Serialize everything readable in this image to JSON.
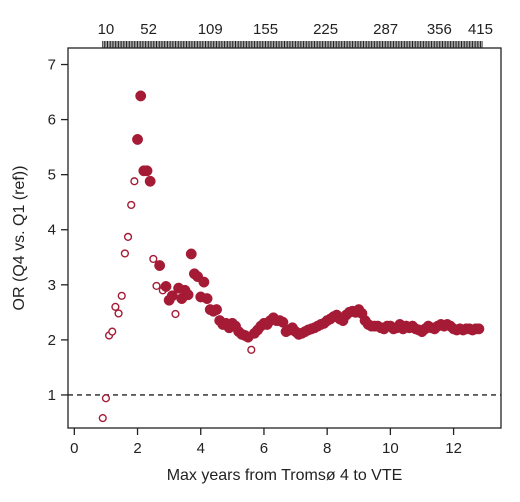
{
  "chart_data": {
    "type": "scatter",
    "title": "",
    "xlabel": "Max years from Tromsø 4 to VTE",
    "ylabel": "OR (Q4 vs. Q1 (ref))",
    "xlim": [
      -0.2,
      13.5
    ],
    "ylim": [
      0.4,
      7.3
    ],
    "x_ticks": [
      0,
      2,
      4,
      6,
      8,
      10,
      12
    ],
    "y_ticks": [
      1,
      2,
      3,
      4,
      5,
      6,
      7
    ],
    "reference_line": {
      "y": 1,
      "style": "dashed"
    },
    "top_axis": {
      "tick_labels": [
        {
          "x": 1.0,
          "label": "10"
        },
        {
          "x": 2.35,
          "label": "52"
        },
        {
          "x": 4.3,
          "label": "109"
        },
        {
          "x": 6.05,
          "label": "155"
        },
        {
          "x": 7.95,
          "label": "225"
        },
        {
          "x": 9.85,
          "label": "287"
        },
        {
          "x": 11.55,
          "label": "356"
        },
        {
          "x": 12.85,
          "label": "415"
        }
      ],
      "minor_tick_range": [
        0.9,
        12.9
      ],
      "minor_tick_step": 0.05
    },
    "marker_color": "#a51b35",
    "grid": false,
    "series": [
      {
        "name": "",
        "fill": "open",
        "points": [
          [
            0.9,
            0.58
          ],
          [
            1.0,
            0.94
          ],
          [
            1.1,
            2.08
          ],
          [
            1.2,
            2.15
          ],
          [
            1.3,
            2.6
          ],
          [
            1.4,
            2.48
          ],
          [
            1.5,
            2.8
          ],
          [
            1.6,
            3.57
          ],
          [
            1.7,
            3.87
          ],
          [
            1.8,
            4.45
          ],
          [
            1.9,
            4.88
          ],
          [
            2.5,
            3.47
          ],
          [
            2.6,
            2.98
          ],
          [
            2.8,
            2.9
          ],
          [
            3.2,
            2.47
          ],
          [
            5.6,
            1.82
          ]
        ]
      },
      {
        "name": "",
        "fill": "solid",
        "points": [
          [
            2.0,
            5.64
          ],
          [
            2.1,
            6.43
          ],
          [
            2.2,
            5.07
          ],
          [
            2.3,
            5.07
          ],
          [
            2.4,
            4.88
          ],
          [
            2.7,
            3.35
          ],
          [
            2.9,
            2.97
          ],
          [
            3.0,
            2.72
          ],
          [
            3.1,
            2.8
          ],
          [
            3.3,
            2.94
          ],
          [
            3.4,
            2.75
          ],
          [
            3.5,
            2.9
          ],
          [
            3.6,
            2.82
          ],
          [
            3.7,
            3.56
          ],
          [
            3.8,
            3.2
          ],
          [
            3.9,
            3.15
          ],
          [
            4.0,
            2.78
          ],
          [
            4.1,
            3.05
          ],
          [
            4.2,
            2.75
          ],
          [
            4.3,
            2.55
          ],
          [
            4.4,
            2.52
          ],
          [
            4.5,
            2.55
          ],
          [
            4.6,
            2.35
          ],
          [
            4.7,
            2.28
          ],
          [
            4.8,
            2.3
          ],
          [
            4.9,
            2.22
          ],
          [
            5.0,
            2.3
          ],
          [
            5.1,
            2.25
          ],
          [
            5.2,
            2.15
          ],
          [
            5.3,
            2.1
          ],
          [
            5.4,
            2.08
          ],
          [
            5.5,
            2.05
          ],
          [
            5.7,
            2.12
          ],
          [
            5.8,
            2.18
          ],
          [
            5.9,
            2.25
          ],
          [
            6.0,
            2.3
          ],
          [
            6.1,
            2.28
          ],
          [
            6.2,
            2.35
          ],
          [
            6.3,
            2.4
          ],
          [
            6.4,
            2.35
          ],
          [
            6.5,
            2.35
          ],
          [
            6.6,
            2.32
          ],
          [
            6.7,
            2.15
          ],
          [
            6.8,
            2.18
          ],
          [
            6.9,
            2.22
          ],
          [
            7.0,
            2.15
          ],
          [
            7.1,
            2.1
          ],
          [
            7.2,
            2.12
          ],
          [
            7.3,
            2.15
          ],
          [
            7.4,
            2.18
          ],
          [
            7.5,
            2.2
          ],
          [
            7.6,
            2.22
          ],
          [
            7.7,
            2.25
          ],
          [
            7.8,
            2.28
          ],
          [
            7.9,
            2.3
          ],
          [
            8.0,
            2.35
          ],
          [
            8.1,
            2.38
          ],
          [
            8.2,
            2.42
          ],
          [
            8.3,
            2.45
          ],
          [
            8.4,
            2.38
          ],
          [
            8.5,
            2.35
          ],
          [
            8.6,
            2.45
          ],
          [
            8.7,
            2.5
          ],
          [
            8.8,
            2.52
          ],
          [
            8.9,
            2.5
          ],
          [
            9.0,
            2.55
          ],
          [
            9.1,
            2.48
          ],
          [
            9.2,
            2.35
          ],
          [
            9.3,
            2.28
          ],
          [
            9.4,
            2.25
          ],
          [
            9.5,
            2.25
          ],
          [
            9.6,
            2.25
          ],
          [
            9.7,
            2.22
          ],
          [
            9.8,
            2.2
          ],
          [
            9.9,
            2.25
          ],
          [
            10.0,
            2.25
          ],
          [
            10.1,
            2.2
          ],
          [
            10.2,
            2.22
          ],
          [
            10.3,
            2.28
          ],
          [
            10.4,
            2.2
          ],
          [
            10.5,
            2.25
          ],
          [
            10.6,
            2.22
          ],
          [
            10.7,
            2.25
          ],
          [
            10.8,
            2.2
          ],
          [
            10.9,
            2.18
          ],
          [
            11.0,
            2.15
          ],
          [
            11.1,
            2.2
          ],
          [
            11.2,
            2.25
          ],
          [
            11.3,
            2.22
          ],
          [
            11.4,
            2.2
          ],
          [
            11.5,
            2.25
          ],
          [
            11.6,
            2.28
          ],
          [
            11.7,
            2.25
          ],
          [
            11.8,
            2.28
          ],
          [
            11.9,
            2.25
          ],
          [
            12.0,
            2.2
          ],
          [
            12.1,
            2.18
          ],
          [
            12.2,
            2.2
          ],
          [
            12.3,
            2.18
          ],
          [
            12.4,
            2.2
          ],
          [
            12.5,
            2.2
          ],
          [
            12.6,
            2.18
          ],
          [
            12.7,
            2.2
          ],
          [
            12.8,
            2.2
          ]
        ]
      }
    ]
  }
}
